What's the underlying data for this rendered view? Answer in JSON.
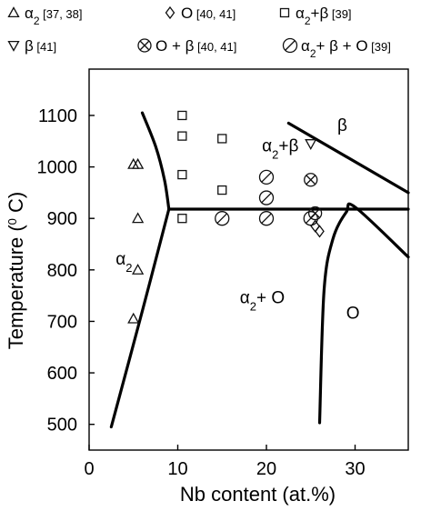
{
  "chart_data": {
    "type": "scatter",
    "xlabel": "Nb content (at.%)",
    "ylabel": "Temperature (°C)",
    "ylabel_parts": {
      "text": "Temperature (",
      "sup": "0",
      "unit": " C)"
    },
    "xlim": [
      0,
      36
    ],
    "ylim": [
      450,
      1190
    ],
    "xticks": [
      0,
      10,
      20,
      30
    ],
    "yticks": [
      500,
      600,
      700,
      800,
      900,
      1000,
      1100
    ],
    "grid": false,
    "legend_position": "top",
    "legend": [
      {
        "marker": "triangle",
        "label": "α",
        "sub": "2",
        "ref": "[37, 38]"
      },
      {
        "marker": "diamond",
        "label": "O",
        "ref": "[40, 41]"
      },
      {
        "marker": "square",
        "label": "α",
        "sub": "2",
        "rest": "+β",
        "ref": "[39]"
      },
      {
        "marker": "invtriangle",
        "label": "β",
        "ref": "[41]"
      },
      {
        "marker": "circlex",
        "label": "O + β",
        "ref": "[40, 41]"
      },
      {
        "marker": "circleslash",
        "label": "α",
        "sub": "2",
        "rest": "+ β + O",
        "ref": "[39]"
      }
    ],
    "series": [
      {
        "marker": "triangle",
        "points": [
          [
            5,
            1005
          ],
          [
            5.5,
            1005
          ],
          [
            5.5,
            900
          ],
          [
            5.5,
            800
          ],
          [
            5,
            705
          ]
        ]
      },
      {
        "marker": "diamond",
        "points": [
          [
            25.5,
            885
          ],
          [
            26,
            875
          ]
        ]
      },
      {
        "marker": "square",
        "points": [
          [
            10.5,
            1100
          ],
          [
            10.5,
            1060
          ],
          [
            10.5,
            985
          ],
          [
            15,
            1055
          ],
          [
            15,
            955
          ],
          [
            10.5,
            900
          ]
        ]
      },
      {
        "marker": "invtriangle",
        "points": [
          [
            25,
            1045
          ]
        ]
      },
      {
        "marker": "circlex",
        "points": [
          [
            25,
            975
          ],
          [
            25.5,
            910
          ]
        ]
      },
      {
        "marker": "circleslash",
        "points": [
          [
            15,
            900
          ],
          [
            20,
            980
          ],
          [
            20,
            940
          ],
          [
            20,
            900
          ],
          [
            25,
            900
          ]
        ]
      }
    ],
    "boundaries": [
      [
        [
          6,
          1105
        ],
        [
          7.5,
          1040
        ],
        [
          8.5,
          975
        ],
        [
          9,
          918
        ]
      ],
      [
        [
          9,
          918
        ],
        [
          6,
          720
        ],
        [
          2.5,
          495
        ]
      ],
      [
        [
          9,
          918
        ],
        [
          36,
          918
        ]
      ],
      [
        [
          22.5,
          1085
        ],
        [
          36,
          950
        ]
      ],
      [
        [
          26,
          503
        ],
        [
          26.5,
          760
        ],
        [
          27.5,
          860
        ],
        [
          29,
          912
        ],
        [
          30,
          922
        ],
        [
          36,
          825
        ]
      ]
    ],
    "region_labels": [
      {
        "text": "α",
        "sub": "2",
        "rest": "+β",
        "x": 19.5,
        "y": 1030
      },
      {
        "text": "β",
        "x": 28,
        "y": 1070
      },
      {
        "text": "α",
        "sub": "2",
        "x": 3,
        "y": 810
      },
      {
        "text": "α",
        "sub": "2",
        "rest": "+ O",
        "x": 17,
        "y": 735
      },
      {
        "text": "O",
        "x": 29,
        "y": 705
      }
    ]
  }
}
